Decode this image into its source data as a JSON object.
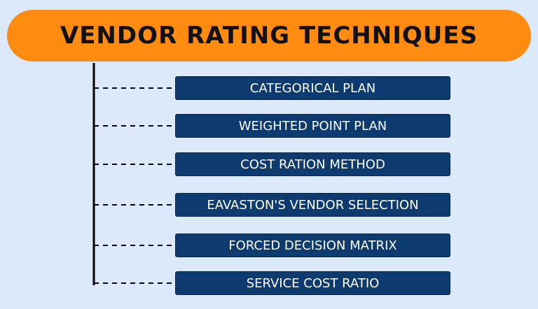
{
  "header": {
    "title": "VENDOR RATING TECHNIQUES"
  },
  "nodes": [
    {
      "label": "CATEGORICAL PLAN"
    },
    {
      "label": "WEIGHTED POINT PLAN"
    },
    {
      "label": "COST RATION METHOD"
    },
    {
      "label": "EAVASTON'S VENDOR SELECTION"
    },
    {
      "label": "FORCED DECISION MATRIX"
    },
    {
      "label": "SERVICE COST RATIO"
    }
  ]
}
